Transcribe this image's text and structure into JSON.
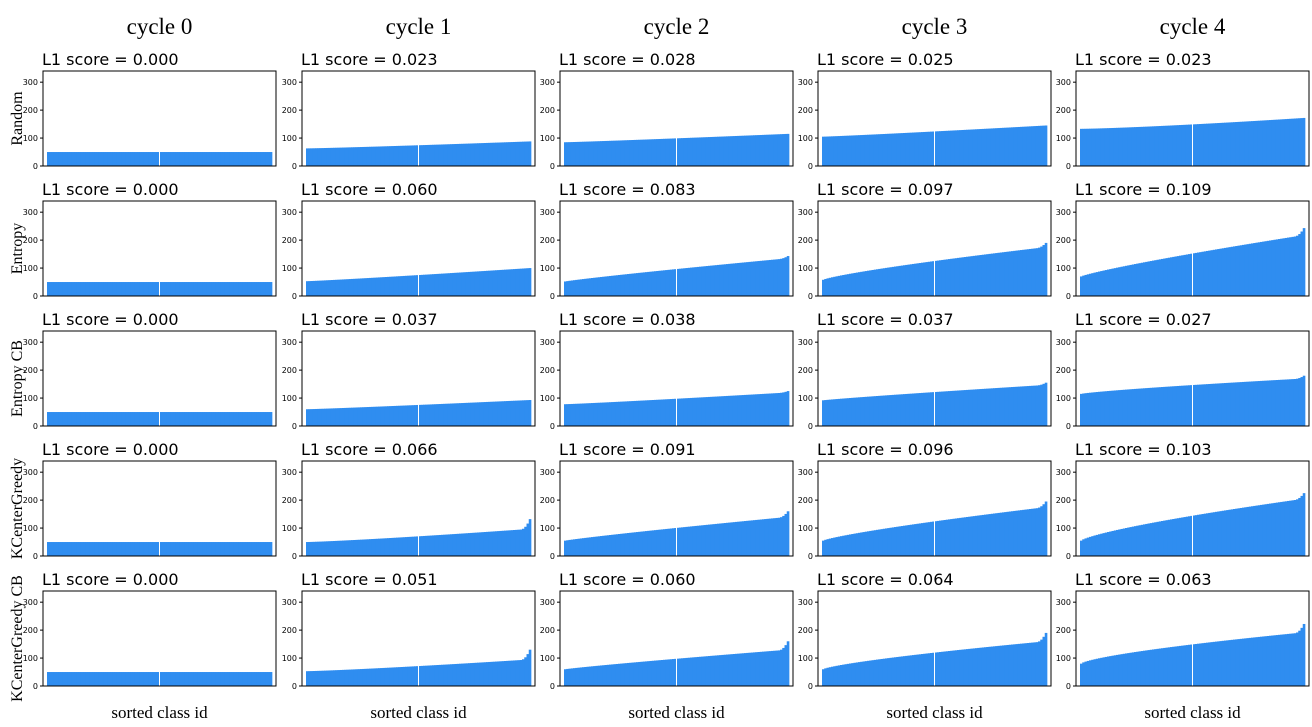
{
  "columns": [
    "cycle 0",
    "cycle 1",
    "cycle 2",
    "cycle 3",
    "cycle 4"
  ],
  "rows": [
    "Random",
    "Entropy",
    "Entropy CB",
    "KCenterGreedy",
    "KCenterGreedy CB"
  ],
  "xlabel": "sorted class id",
  "score_prefix": "L1 score = ",
  "y_ticks": [
    0,
    100,
    200,
    300
  ],
  "colors": {
    "bar": "#2f8df0",
    "divider": "#ffffff",
    "axis": "#000000"
  },
  "chart_data": {
    "type": "bar",
    "n_classes": 100,
    "ylim": [
      0,
      340
    ],
    "yticks": [
      0,
      100,
      200,
      300
    ],
    "xlabel": "sorted class id",
    "ylabel": "",
    "grid": false,
    "panels": [
      [
        {
          "score": "0.000",
          "min": 50,
          "max": 50,
          "curve": 1.0,
          "tail": 0
        },
        {
          "score": "0.023",
          "min": 63,
          "max": 88,
          "curve": 1.15,
          "tail": 0
        },
        {
          "score": "0.028",
          "min": 85,
          "max": 115,
          "curve": 1.1,
          "tail": 0
        },
        {
          "score": "0.025",
          "min": 105,
          "max": 145,
          "curve": 1.1,
          "tail": 0
        },
        {
          "score": "0.023",
          "min": 133,
          "max": 172,
          "curve": 1.3,
          "tail": 0
        }
      ],
      [
        {
          "score": "0.000",
          "min": 50,
          "max": 50,
          "curve": 1.0,
          "tail": 0
        },
        {
          "score": "0.060",
          "min": 53,
          "max": 100,
          "curve": 1.1,
          "tail": 0
        },
        {
          "score": "0.083",
          "min": 52,
          "max": 143,
          "curve": 0.9,
          "tail": 8
        },
        {
          "score": "0.097",
          "min": 58,
          "max": 190,
          "curve": 0.8,
          "tail": 15
        },
        {
          "score": "0.109",
          "min": 70,
          "max": 243,
          "curve": 0.85,
          "tail": 25
        }
      ],
      [
        {
          "score": "0.000",
          "min": 50,
          "max": 50,
          "curve": 1.0,
          "tail": 0
        },
        {
          "score": "0.037",
          "min": 60,
          "max": 93,
          "curve": 1.1,
          "tail": 0
        },
        {
          "score": "0.038",
          "min": 78,
          "max": 125,
          "curve": 1.1,
          "tail": 5
        },
        {
          "score": "0.037",
          "min": 92,
          "max": 155,
          "curve": 0.9,
          "tail": 8
        },
        {
          "score": "0.027",
          "min": 115,
          "max": 180,
          "curve": 0.8,
          "tail": 10
        }
      ],
      [
        {
          "score": "0.000",
          "min": 50,
          "max": 50,
          "curve": 1.0,
          "tail": 0
        },
        {
          "score": "0.066",
          "min": 50,
          "max": 132,
          "curve": 1.2,
          "tail": 35
        },
        {
          "score": "0.091",
          "min": 55,
          "max": 160,
          "curve": 0.9,
          "tail": 20
        },
        {
          "score": "0.096",
          "min": 55,
          "max": 195,
          "curve": 0.8,
          "tail": 20
        },
        {
          "score": "0.103",
          "min": 55,
          "max": 225,
          "curve": 0.75,
          "tail": 20
        }
      ],
      [
        {
          "score": "0.000",
          "min": 50,
          "max": 50,
          "curve": 1.0,
          "tail": 0
        },
        {
          "score": "0.051",
          "min": 53,
          "max": 130,
          "curve": 1.2,
          "tail": 35
        },
        {
          "score": "0.060",
          "min": 60,
          "max": 160,
          "curve": 0.9,
          "tail": 30
        },
        {
          "score": "0.064",
          "min": 60,
          "max": 190,
          "curve": 0.75,
          "tail": 30
        },
        {
          "score": "0.063",
          "min": 80,
          "max": 222,
          "curve": 0.7,
          "tail": 30
        }
      ]
    ]
  }
}
